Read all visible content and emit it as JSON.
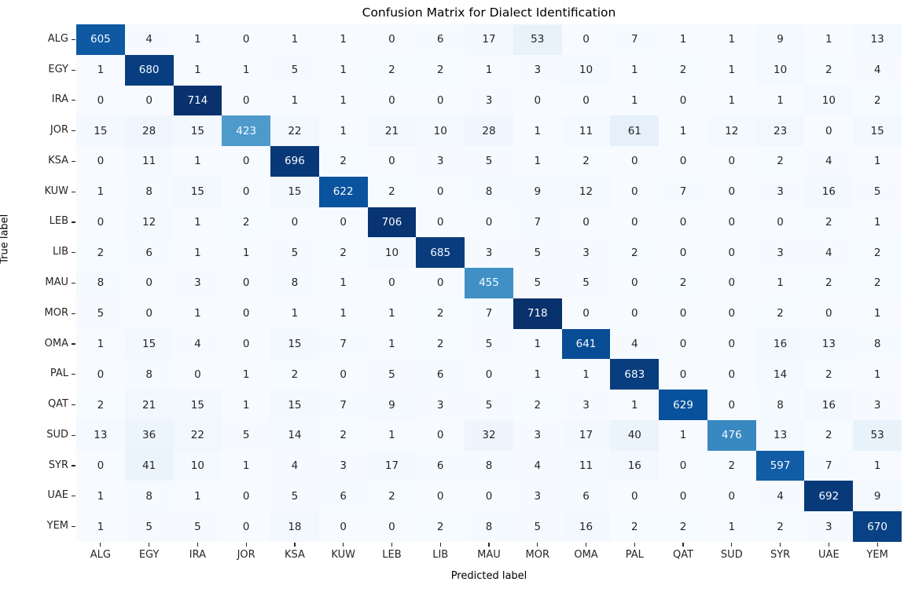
{
  "chart_data": {
    "type": "heatmap",
    "title": "Confusion Matrix for Dialect Identification",
    "xlabel": "Predicted label",
    "ylabel": "True label",
    "labels": [
      "ALG",
      "EGY",
      "IRA",
      "JOR",
      "KSA",
      "KUW",
      "LEB",
      "LIB",
      "MAU",
      "MOR",
      "OMA",
      "PAL",
      "QAT",
      "SUD",
      "SYR",
      "UAE",
      "YEM"
    ],
    "matrix": [
      [
        605,
        4,
        1,
        0,
        1,
        1,
        0,
        6,
        17,
        53,
        0,
        7,
        1,
        1,
        9,
        1,
        13
      ],
      [
        1,
        680,
        1,
        1,
        5,
        1,
        2,
        2,
        1,
        3,
        10,
        1,
        2,
        1,
        10,
        2,
        4
      ],
      [
        0,
        0,
        714,
        0,
        1,
        1,
        0,
        0,
        3,
        0,
        0,
        1,
        0,
        1,
        1,
        10,
        2
      ],
      [
        15,
        28,
        15,
        423,
        22,
        1,
        21,
        10,
        28,
        1,
        11,
        61,
        1,
        12,
        23,
        0,
        15
      ],
      [
        0,
        11,
        1,
        0,
        696,
        2,
        0,
        3,
        5,
        1,
        2,
        0,
        0,
        0,
        2,
        4,
        1
      ],
      [
        1,
        8,
        15,
        0,
        15,
        622,
        2,
        0,
        8,
        9,
        12,
        0,
        7,
        0,
        3,
        16,
        5
      ],
      [
        0,
        12,
        1,
        2,
        0,
        0,
        706,
        0,
        0,
        7,
        0,
        0,
        0,
        0,
        0,
        2,
        1
      ],
      [
        2,
        6,
        1,
        1,
        5,
        2,
        10,
        685,
        3,
        5,
        3,
        2,
        0,
        0,
        3,
        4,
        2
      ],
      [
        8,
        0,
        3,
        0,
        8,
        1,
        0,
        0,
        455,
        5,
        5,
        0,
        2,
        0,
        1,
        2,
        2
      ],
      [
        5,
        0,
        1,
        0,
        1,
        1,
        1,
        2,
        7,
        718,
        0,
        0,
        0,
        0,
        2,
        0,
        1
      ],
      [
        1,
        15,
        4,
        0,
        15,
        7,
        1,
        2,
        5,
        1,
        641,
        4,
        0,
        0,
        16,
        13,
        8
      ],
      [
        0,
        8,
        0,
        1,
        2,
        0,
        5,
        6,
        0,
        1,
        1,
        683,
        0,
        0,
        14,
        2,
        1
      ],
      [
        2,
        21,
        15,
        1,
        15,
        7,
        9,
        3,
        5,
        2,
        3,
        1,
        629,
        0,
        8,
        16,
        3
      ],
      [
        13,
        36,
        22,
        5,
        14,
        2,
        1,
        0,
        32,
        3,
        17,
        40,
        1,
        476,
        13,
        2,
        53
      ],
      [
        0,
        41,
        10,
        1,
        4,
        3,
        17,
        6,
        8,
        4,
        11,
        16,
        0,
        2,
        597,
        7,
        1
      ],
      [
        1,
        8,
        1,
        0,
        5,
        6,
        2,
        0,
        0,
        3,
        6,
        0,
        0,
        0,
        4,
        692,
        9
      ],
      [
        1,
        5,
        5,
        0,
        18,
        0,
        0,
        2,
        8,
        5,
        16,
        2,
        2,
        1,
        2,
        3,
        670
      ]
    ],
    "vmin": 0,
    "vmax": 718,
    "text_threshold": 359,
    "legend_position": "none",
    "grid": false,
    "colors": {
      "colormap_name": "Blues",
      "colormap_stops": [
        "#f7fbff",
        "#deebf7",
        "#c6dbef",
        "#9ecae1",
        "#6baed6",
        "#4292c6",
        "#2171b5",
        "#08519c",
        "#08306b"
      ],
      "text_dark": "#262626",
      "text_light": "#f7fbff",
      "background": "#ffffff",
      "tick_color": "#262626"
    }
  }
}
